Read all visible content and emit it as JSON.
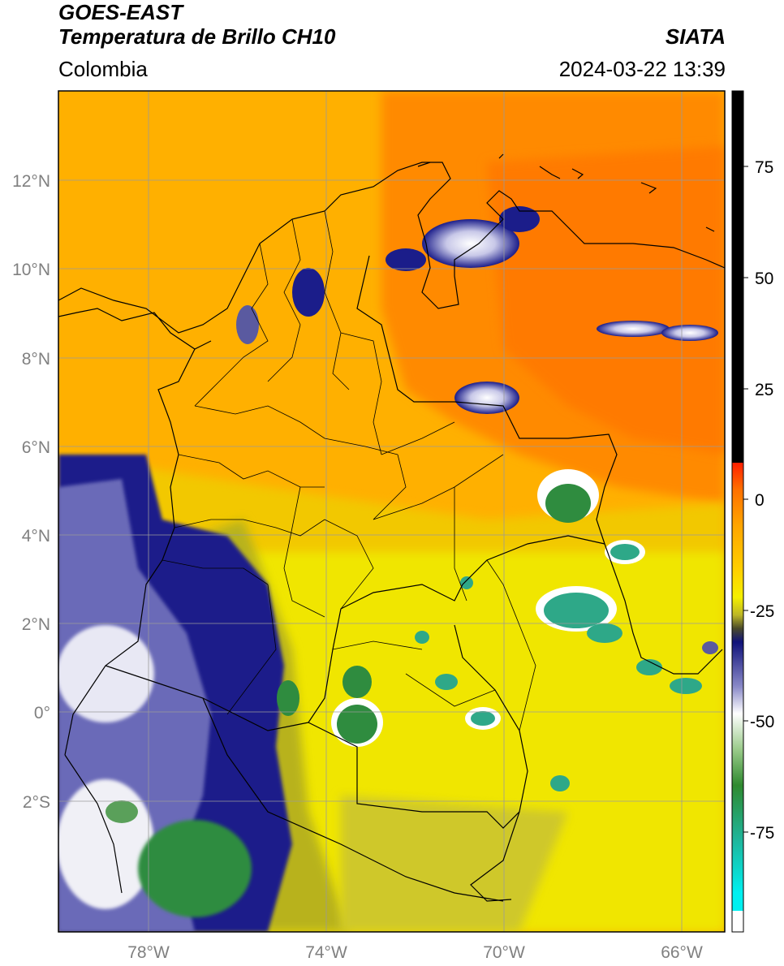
{
  "header": {
    "satellite": "GOES-EAST",
    "product": "Temperatura de Brillo CH10",
    "agency": "SIATA",
    "region": "Colombia",
    "timestamp": "2024-03-22 13:39"
  },
  "axes": {
    "lat_labels": [
      "12°N",
      "10°N",
      "8°N",
      "6°N",
      "4°N",
      "2°N",
      "0°",
      "2°S"
    ],
    "lon_labels": [
      "78°W",
      "74°W",
      "70°W",
      "66°W"
    ]
  },
  "colorbar": {
    "tick_labels": [
      "75",
      "50",
      "25",
      "0",
      "-25",
      "-50",
      "-75"
    ],
    "colors": {
      "black": "#000000",
      "red": "#ff1a00",
      "orange": "#ff8c00",
      "amber": "#ffb300",
      "yellow": "#f5f000",
      "olive": "#bcb626",
      "darkolive": "#4a4a2a",
      "navy": "#10127a",
      "white": "#ffffff",
      "green": "#2f8a2f",
      "teal": "#1fb59a",
      "cyan": "#00f0f0"
    }
  },
  "map_colors": {
    "orange": "#ff9a00",
    "deep_orange": "#ff7a00",
    "amber": "#ffb000",
    "yellow": "#f2ea00",
    "olive": "#b8b21e",
    "dark_olive": "#7d7a2a",
    "navy": "#1b1d8a",
    "white": "#ffffff",
    "green": "#2f8c3f",
    "teal": "#2ea888"
  }
}
